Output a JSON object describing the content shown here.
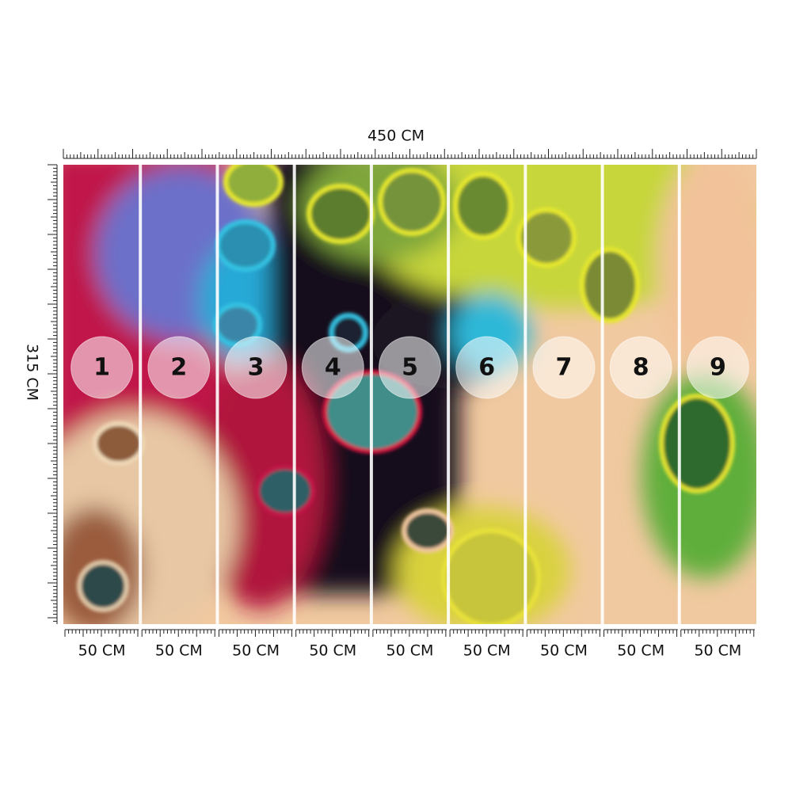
{
  "dimensions": {
    "width": "450 CM",
    "height": "315 CM"
  },
  "panels": [
    {
      "number": "1",
      "width": "50 CM"
    },
    {
      "number": "2",
      "width": "50 CM"
    },
    {
      "number": "3",
      "width": "50 CM"
    },
    {
      "number": "4",
      "width": "50 CM"
    },
    {
      "number": "5",
      "width": "50 CM"
    },
    {
      "number": "6",
      "width": "50 CM"
    },
    {
      "number": "7",
      "width": "50 CM"
    },
    {
      "number": "8",
      "width": "50 CM"
    },
    {
      "number": "9",
      "width": "50 CM"
    }
  ]
}
